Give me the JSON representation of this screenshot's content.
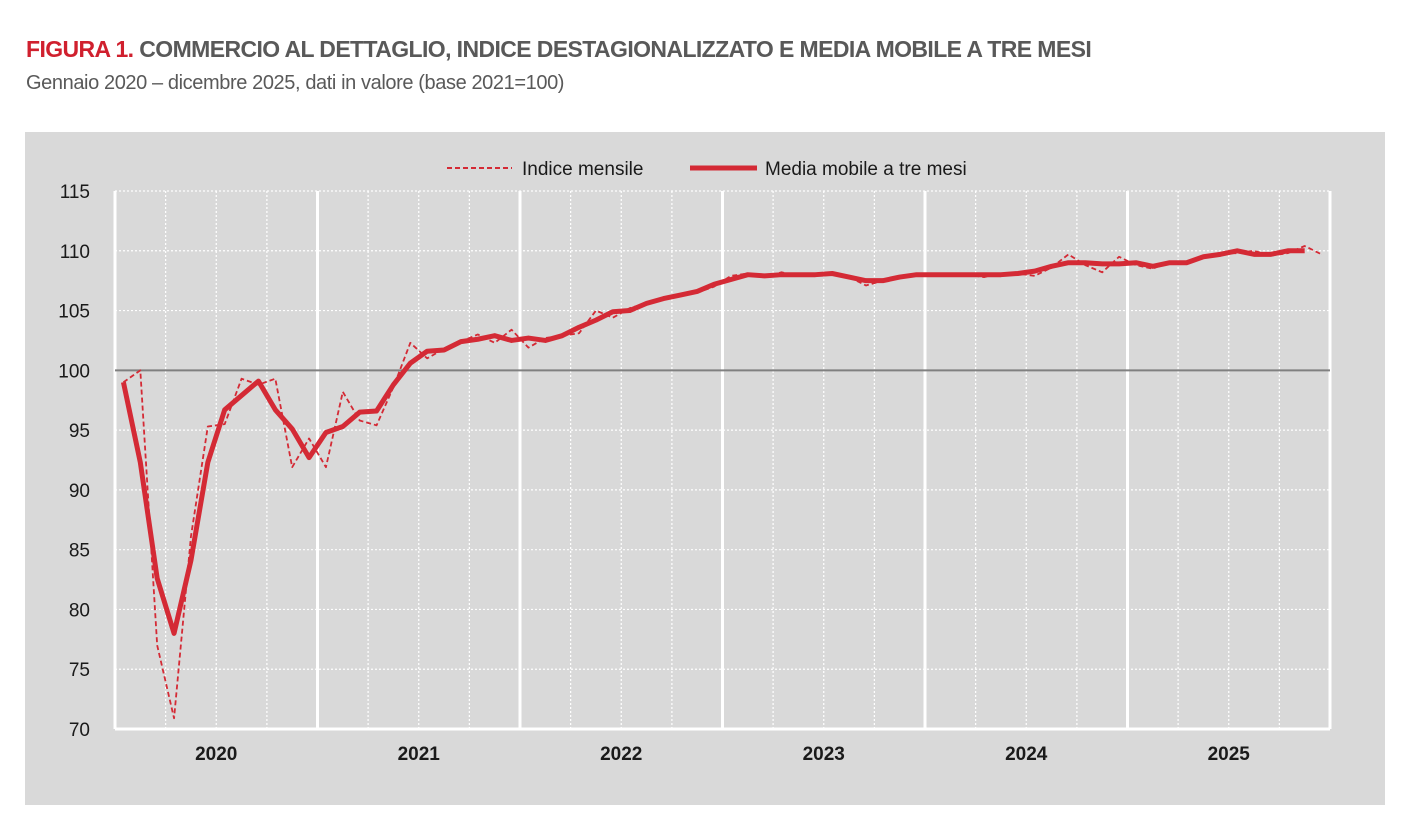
{
  "figure_label": "FIGURA 1.",
  "title": "COMMERCIO AL DETTAGLIO, INDICE DESTAGIONALIZZATO E MEDIA MOBILE A TRE MESI",
  "subtitle": "Gennaio 2020 – dicembre 2025, dati in valore (base 2021=100)",
  "colors": {
    "series": "#d42a35",
    "background": "#d9d9d9",
    "reference_line": "#808080"
  },
  "chart_data": {
    "type": "line",
    "title": "",
    "xlabel": "",
    "ylabel": "",
    "ylim": [
      70,
      115
    ],
    "yticks": [
      "70",
      "75",
      "80",
      "85",
      "90",
      "95",
      "100",
      "105",
      "110",
      "115"
    ],
    "years": [
      "2020",
      "2021",
      "2022",
      "2023",
      "2024",
      "2025"
    ],
    "x_range": [
      "2020-01",
      "2025-12"
    ],
    "grid": true,
    "reference_line": 100,
    "legend": "top-center",
    "series": [
      {
        "name": "Indice mensile",
        "style": "dashed",
        "values": [
          99.0,
          100.0,
          77.0,
          70.9,
          86.1,
          95.3,
          95.5,
          99.3,
          98.8,
          99.3,
          91.9,
          94.3,
          91.9,
          98.2,
          95.8,
          95.4,
          98.6,
          102.3,
          101.0,
          101.8,
          102.4,
          103.0,
          102.3,
          103.4,
          101.9,
          102.7,
          102.9,
          103.1,
          105.0,
          104.4,
          105.2,
          105.6,
          106.0,
          106.3,
          106.5,
          107.0,
          107.9,
          108.1,
          107.8,
          108.2,
          107.9,
          108.0,
          108.2,
          107.8,
          107.1,
          107.5,
          107.9,
          108.1,
          108.0,
          108.0,
          108.0,
          107.8,
          108.1,
          108.1,
          107.9,
          108.6,
          109.7,
          108.8,
          108.2,
          109.5,
          108.8,
          108.5,
          109.1,
          109.0,
          109.4,
          109.8,
          109.8,
          110.0,
          109.6,
          109.8,
          110.4,
          109.7
        ]
      },
      {
        "name": "Media mobile a tre mesi",
        "style": "solid",
        "values": [
          99.0,
          92.3,
          82.6,
          78.0,
          84.1,
          92.3,
          96.7,
          97.9,
          99.1,
          96.7,
          95.1,
          92.7,
          94.8,
          95.3,
          96.5,
          96.6,
          98.8,
          100.6,
          101.6,
          101.7,
          102.4,
          102.6,
          102.9,
          102.5,
          102.7,
          102.5,
          102.9,
          103.6,
          104.2,
          104.9,
          105.0,
          105.6,
          106.0,
          106.3,
          106.6,
          107.2,
          107.6,
          108.0,
          107.9,
          108.0,
          108.0,
          108.0,
          108.1,
          107.8,
          107.5,
          107.5,
          107.8,
          108.0,
          108.0,
          108.0,
          108.0,
          108.0,
          108.0,
          108.1,
          108.3,
          108.7,
          109.0,
          109.0,
          108.9,
          108.9,
          109.0,
          108.7,
          109.0,
          109.0,
          109.5,
          109.7,
          110.0,
          109.7,
          109.7,
          110.0,
          110.0,
          null
        ]
      }
    ]
  }
}
